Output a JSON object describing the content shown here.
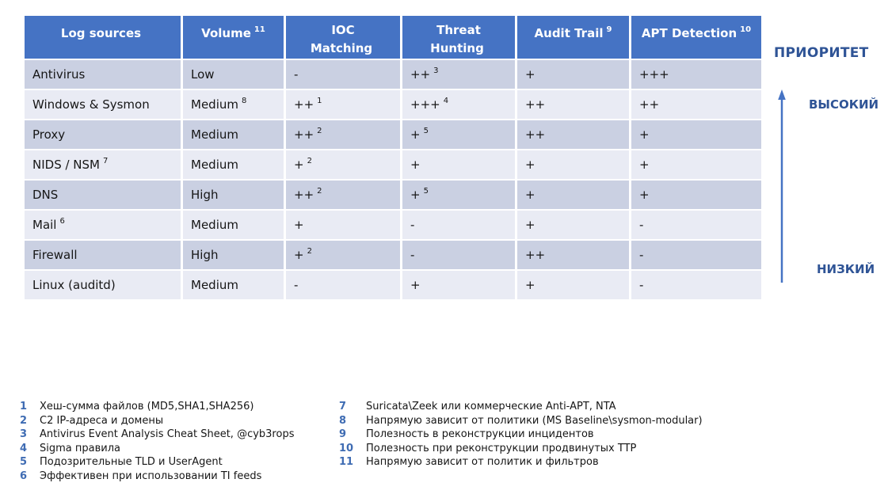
{
  "colors": {
    "header_bg": "#4573C4",
    "row_band_dark": "#CAD0E2",
    "row_band_light": "#E9EBF4",
    "priority_text": "#2F5496",
    "arrow": "#4573C4",
    "footnote_number": "#3F6CB3"
  },
  "table": {
    "columns": [
      {
        "label": "Log sources",
        "sup": ""
      },
      {
        "label": "Volume",
        "sup": "11"
      },
      {
        "label": "IOC\nMatching",
        "sup": ""
      },
      {
        "label": "Threat\nHunting",
        "sup": ""
      },
      {
        "label": "Audit Trail",
        "sup": "9"
      },
      {
        "label": "APT Detection",
        "sup": "10"
      }
    ],
    "rows": [
      [
        {
          "t": "Antivirus",
          "s": ""
        },
        {
          "t": "Low",
          "s": ""
        },
        {
          "t": "-",
          "s": ""
        },
        {
          "t": "++",
          "s": "3"
        },
        {
          "t": "+",
          "s": ""
        },
        {
          "t": "+++",
          "s": ""
        }
      ],
      [
        {
          "t": "Windows & Sysmon",
          "s": ""
        },
        {
          "t": "Medium",
          "s": "8"
        },
        {
          "t": "++",
          "s": "1"
        },
        {
          "t": "+++",
          "s": "4"
        },
        {
          "t": "++",
          "s": ""
        },
        {
          "t": "++",
          "s": ""
        }
      ],
      [
        {
          "t": "Proxy",
          "s": ""
        },
        {
          "t": "Medium",
          "s": ""
        },
        {
          "t": "++",
          "s": "2"
        },
        {
          "t": "+",
          "s": "5"
        },
        {
          "t": "++",
          "s": ""
        },
        {
          "t": "+",
          "s": ""
        }
      ],
      [
        {
          "t": "NIDS / NSM",
          "s": "7"
        },
        {
          "t": "Medium",
          "s": ""
        },
        {
          "t": "+",
          "s": "2"
        },
        {
          "t": "+",
          "s": ""
        },
        {
          "t": "+",
          "s": ""
        },
        {
          "t": "+",
          "s": ""
        }
      ],
      [
        {
          "t": "DNS",
          "s": ""
        },
        {
          "t": "High",
          "s": ""
        },
        {
          "t": "++",
          "s": "2"
        },
        {
          "t": "+",
          "s": "5"
        },
        {
          "t": "+",
          "s": ""
        },
        {
          "t": "+",
          "s": ""
        }
      ],
      [
        {
          "t": "Mail",
          "s": "6"
        },
        {
          "t": "Medium",
          "s": ""
        },
        {
          "t": "+",
          "s": ""
        },
        {
          "t": "-",
          "s": ""
        },
        {
          "t": "+",
          "s": ""
        },
        {
          "t": "-",
          "s": ""
        }
      ],
      [
        {
          "t": "Firewall",
          "s": ""
        },
        {
          "t": "High",
          "s": ""
        },
        {
          "t": "+",
          "s": "2"
        },
        {
          "t": "-",
          "s": ""
        },
        {
          "t": "++",
          "s": ""
        },
        {
          "t": "-",
          "s": ""
        }
      ],
      [
        {
          "t": "Linux (auditd)",
          "s": ""
        },
        {
          "t": "Medium",
          "s": ""
        },
        {
          "t": "-",
          "s": ""
        },
        {
          "t": "+",
          "s": ""
        },
        {
          "t": "+",
          "s": ""
        },
        {
          "t": "-",
          "s": ""
        }
      ]
    ]
  },
  "priority": {
    "title": "ПРИОРИТЕТ",
    "high": "ВЫСОКИЙ",
    "low": "НИЗКИЙ"
  },
  "footnotes": {
    "left": [
      {
        "num": "1",
        "text": "Хеш-сумма файлов (MD5,SHA1,SHA256)"
      },
      {
        "num": "2",
        "text": "C2 IP-адреса и домены"
      },
      {
        "num": "3",
        "text": "Antivirus Event Analysis Cheat Sheet, @cyb3rops"
      },
      {
        "num": "4",
        "text": "Sigma правила"
      },
      {
        "num": "5",
        "text": "Подозрительные TLD и UserAgent"
      },
      {
        "num": "6",
        "text": "Эффективен при использовании TI feeds"
      }
    ],
    "right": [
      {
        "num": "7",
        "text": "Suricata\\Zeek или коммерческие Anti-APT, NTA"
      },
      {
        "num": "8",
        "text": "Напрямую зависит от политики (MS Baseline\\sysmon-modular)"
      },
      {
        "num": "9",
        "text": "Полезность в реконструкции инцидентов"
      },
      {
        "num": "10",
        "text": "Полезность при реконструкции продвинутых TTP"
      },
      {
        "num": "11",
        "text": "Напрямую зависит от политик и фильтров"
      }
    ]
  }
}
